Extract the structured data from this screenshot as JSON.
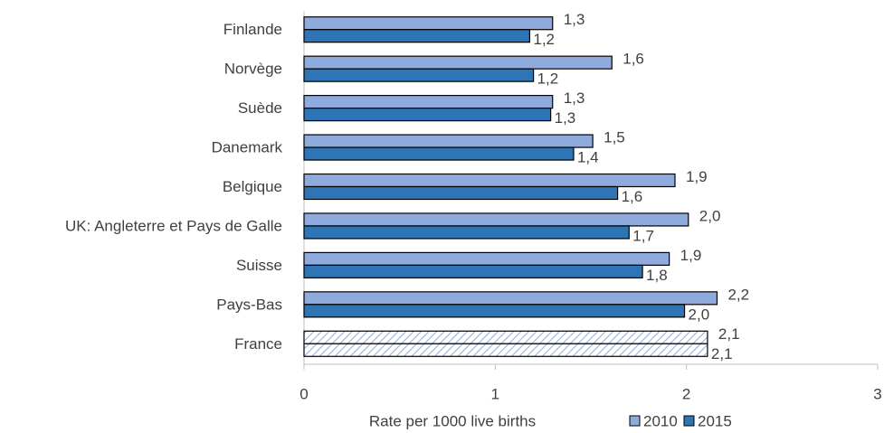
{
  "chart_data": {
    "type": "bar",
    "orientation": "horizontal",
    "categories": [
      "Finlande",
      "Norvège",
      "Suède",
      "Danemark",
      "Belgique",
      "UK: Angleterre et Pays de Galle",
      "Suisse",
      "Pays-Bas",
      "France"
    ],
    "series": [
      {
        "name": "2010",
        "color": "#8faadc",
        "values": [
          1.3,
          1.61,
          1.3,
          1.51,
          1.94,
          2.01,
          1.91,
          2.16,
          2.11
        ],
        "value_labels": [
          "1,3",
          "1,6",
          "1,3",
          "1,5",
          "1,9",
          "2,0",
          "1,9",
          "2,2",
          "2,1"
        ]
      },
      {
        "name": "2015",
        "color": "#2e75b6",
        "values": [
          1.18,
          1.2,
          1.29,
          1.41,
          1.64,
          1.7,
          1.77,
          1.99,
          2.11
        ],
        "value_labels": [
          "1,2",
          "1,2",
          "1,3",
          "1,4",
          "1,6",
          "1,7",
          "1,8",
          "2,0",
          "2,1"
        ]
      }
    ],
    "hatched": [
      false,
      false,
      false,
      false,
      false,
      false,
      false,
      false,
      true
    ],
    "xlabel": "Rate per 1000 live births",
    "xlim": [
      0,
      3
    ],
    "xticks": [
      0,
      1,
      2,
      3
    ],
    "legend": "bottom"
  }
}
